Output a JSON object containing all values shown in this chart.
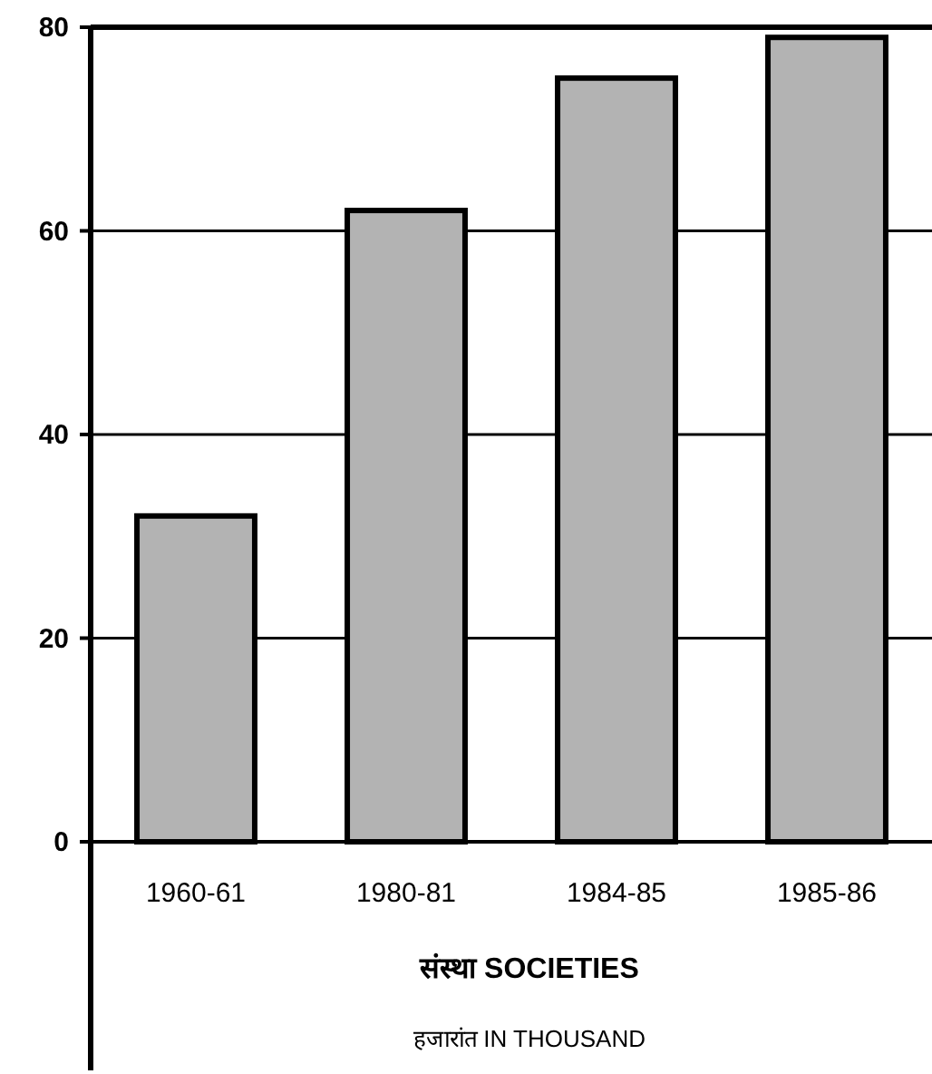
{
  "chart_data": {
    "type": "bar",
    "categories": [
      "1960-61",
      "1980-81",
      "1984-85",
      "1985-86"
    ],
    "values": [
      32,
      62,
      75,
      79
    ],
    "color": "#b3b3b3",
    "ylim": [
      0,
      80
    ],
    "yticks": [
      0,
      20,
      40,
      60,
      80
    ],
    "grid": "y",
    "xlabel": "संस्था SOCIETIES",
    "annotations": [
      "हजारांत IN THOUSAND"
    ]
  }
}
